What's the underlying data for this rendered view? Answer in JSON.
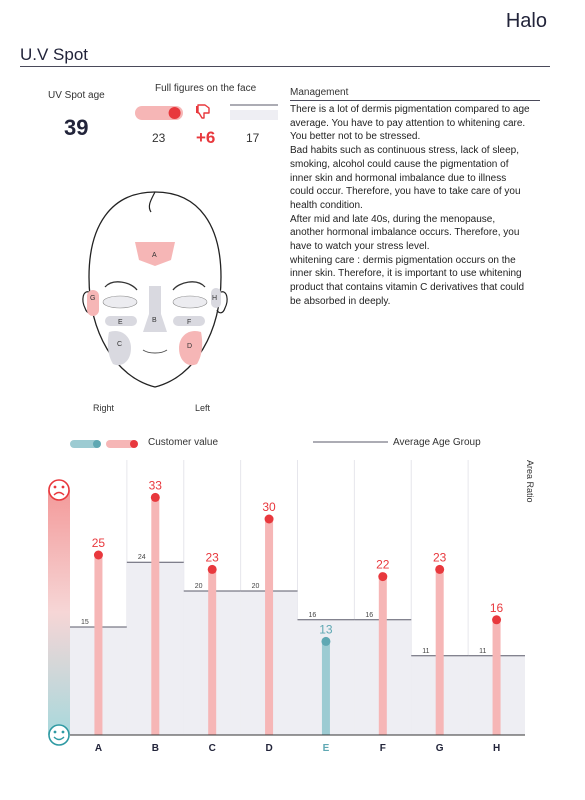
{
  "brand": "Halo",
  "page_title": "U.V Spot",
  "uv_spot_age": {
    "label": "UV Spot age",
    "value": "39"
  },
  "full_figures": {
    "label": "Full figures on the face",
    "customer": "23",
    "delta": "+6",
    "average": "17",
    "customer_fill": 0.7
  },
  "management": {
    "label": "Management",
    "text": "There is a lot of dermis pigmentation compared to age\naverage. You have to pay attention to whitening care.\nYou better not to be stressed.\nBad habits such as continuous stress, lack of sleep,\nsmoking, alcohol could cause the pigmentation of\ninner skin and hormonal imbalance due to illness\ncould occur. Therefore, you have to take care of you\nhealth condition.\nAfter mid and late 40s, during the menopause,\nanother hormonal imbalance occurs. Therefore, you\nhave to watch your stress level.\nwhitening care : dermis pigmentation occurs on the\ninner skin. Therefore, it is important to use whitening\nproduct that contains vitamin C derivatives that could\nbe absorbed in deeply."
  },
  "face": {
    "right_label": "Right",
    "left_label": "Left",
    "zones": [
      "A",
      "B",
      "C",
      "D",
      "E",
      "F",
      "G",
      "H"
    ]
  },
  "legend": {
    "customer": "Customer value",
    "average": "Average Age Group"
  },
  "area_ratio_label": "Area Ratio",
  "colors": {
    "high": "#e8383d",
    "high_bar": "#f6b6b6",
    "low": "#5fa8b3",
    "low_bar": "#9ccbd2",
    "avg_fill": "#eeeef3",
    "avg_line": "#5a5a6a"
  },
  "chart_data": {
    "type": "bar",
    "categories": [
      "A",
      "B",
      "C",
      "D",
      "E",
      "F",
      "G",
      "H"
    ],
    "series": [
      {
        "name": "Customer value",
        "values": [
          25,
          33,
          23,
          30,
          13,
          22,
          23,
          16
        ]
      },
      {
        "name": "Average Age Group",
        "values": [
          15,
          24,
          20,
          20,
          16,
          16,
          11,
          11
        ]
      }
    ],
    "ylabel": "Area Ratio",
    "ylim": [
      0,
      40
    ],
    "legend": "top"
  }
}
